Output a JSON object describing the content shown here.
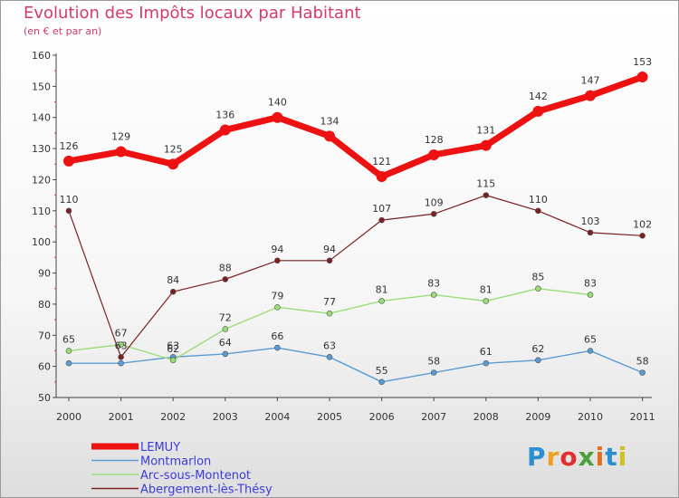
{
  "chart_data": {
    "type": "line",
    "title": "Evolution des Impôts locaux par Habitant",
    "subtitle": "(en € et par an)",
    "x": [
      "2000",
      "2001",
      "2002",
      "2003",
      "2004",
      "2005",
      "2006",
      "2007",
      "2008",
      "2009",
      "2010",
      "2011"
    ],
    "ylim": [
      50,
      160
    ],
    "yticks": [
      50,
      60,
      70,
      80,
      90,
      100,
      110,
      120,
      130,
      140,
      150,
      160
    ],
    "grid": false,
    "legend_position": "bottom-left",
    "series": [
      {
        "name": "LEMUY",
        "color": "#ee1111",
        "values": [
          126,
          129,
          125,
          136,
          140,
          134,
          121,
          128,
          131,
          142,
          147,
          153
        ]
      },
      {
        "name": "Montmarlon",
        "color": "#5b9bd5",
        "values": [
          61,
          61,
          63,
          64,
          66,
          63,
          55,
          58,
          61,
          62,
          65,
          58
        ],
        "labels": [
          "",
          "",
          "63",
          "64",
          "66",
          "63",
          "55",
          "58",
          "61",
          "62",
          "65",
          "58"
        ]
      },
      {
        "name": "Arc-sous-Montenot",
        "color": "#99dd77",
        "values": [
          65,
          67,
          62,
          72,
          79,
          77,
          81,
          83,
          81,
          85,
          83,
          null
        ],
        "labels": [
          "65",
          "67",
          "62",
          "72",
          "79",
          "77",
          "81",
          "83",
          "81",
          "85",
          "83",
          ""
        ]
      },
      {
        "name": "Abergement-lès-Thésy",
        "color": "#7a2020",
        "values": [
          110,
          63,
          84,
          88,
          94,
          94,
          107,
          109,
          115,
          110,
          103,
          102
        ],
        "labels": [
          "110",
          "63",
          "84",
          "88",
          "94",
          "94",
          "107",
          "109",
          "115",
          "110",
          "103",
          "102"
        ]
      }
    ]
  },
  "logo": {
    "letters": [
      "P",
      "r",
      "o",
      "x",
      "i",
      "t",
      "i"
    ]
  }
}
